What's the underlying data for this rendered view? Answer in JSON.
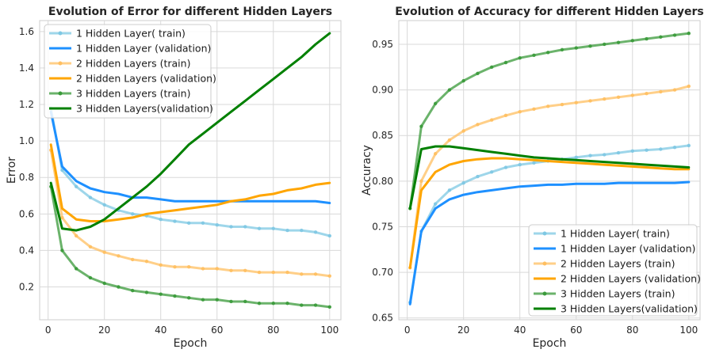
{
  "chart_data": [
    {
      "type": "line",
      "title": "Evolution of Error for different Hidden Layers",
      "xlabel": "Epoch",
      "ylabel": "Error",
      "xlim": [
        -3,
        104
      ],
      "ylim": [
        0.02,
        1.66
      ],
      "xticks": [
        0,
        20,
        40,
        60,
        80,
        100
      ],
      "yticks": [
        0.2,
        0.4,
        0.6,
        0.8,
        1.0,
        1.2,
        1.4,
        1.6
      ],
      "ytick_labels": [
        "0.2",
        "0.4",
        "0.6",
        "0.8",
        "1.0",
        "1.2",
        "1.4",
        "1.6"
      ],
      "grid": true,
      "legend_position": "upper-left",
      "x": [
        1,
        5,
        10,
        15,
        20,
        25,
        30,
        35,
        40,
        45,
        50,
        55,
        60,
        65,
        70,
        75,
        80,
        85,
        90,
        95,
        100
      ],
      "series": [
        {
          "name": "1 Hidden Layer( train)",
          "color": "#7ec8e3",
          "style": "train",
          "values": [
            1.18,
            0.84,
            0.75,
            0.69,
            0.65,
            0.62,
            0.6,
            0.59,
            0.57,
            0.56,
            0.55,
            0.55,
            0.54,
            0.53,
            0.53,
            0.52,
            0.52,
            0.51,
            0.51,
            0.5,
            0.48
          ]
        },
        {
          "name": "1 Hidden Layer (validation)",
          "color": "#1e90ff",
          "style": "validation",
          "values": [
            1.16,
            0.86,
            0.78,
            0.74,
            0.72,
            0.71,
            0.69,
            0.69,
            0.68,
            0.67,
            0.67,
            0.67,
            0.67,
            0.67,
            0.67,
            0.67,
            0.67,
            0.67,
            0.67,
            0.67,
            0.66
          ]
        },
        {
          "name": "2 Hidden Layers (train)",
          "color": "#ffbf60",
          "style": "train",
          "values": [
            0.95,
            0.58,
            0.48,
            0.42,
            0.39,
            0.37,
            0.35,
            0.34,
            0.32,
            0.31,
            0.31,
            0.3,
            0.3,
            0.29,
            0.29,
            0.28,
            0.28,
            0.28,
            0.27,
            0.27,
            0.26
          ]
        },
        {
          "name": "2 Hidden Layers (validation)",
          "color": "#ffa500",
          "style": "validation",
          "values": [
            0.98,
            0.63,
            0.57,
            0.56,
            0.56,
            0.57,
            0.58,
            0.6,
            0.61,
            0.62,
            0.63,
            0.64,
            0.65,
            0.67,
            0.68,
            0.7,
            0.71,
            0.73,
            0.74,
            0.76,
            0.77
          ]
        },
        {
          "name": "3 Hidden Layers (train)",
          "color": "#3a9a3a",
          "style": "train",
          "values": [
            0.75,
            0.4,
            0.3,
            0.25,
            0.22,
            0.2,
            0.18,
            0.17,
            0.16,
            0.15,
            0.14,
            0.13,
            0.13,
            0.12,
            0.12,
            0.11,
            0.11,
            0.11,
            0.1,
            0.1,
            0.09
          ]
        },
        {
          "name": "3 Hidden Layers(validation)",
          "color": "#008000",
          "style": "validation",
          "values": [
            0.77,
            0.52,
            0.51,
            0.53,
            0.57,
            0.63,
            0.69,
            0.75,
            0.82,
            0.9,
            0.98,
            1.04,
            1.1,
            1.16,
            1.22,
            1.28,
            1.34,
            1.4,
            1.46,
            1.53,
            1.59
          ]
        }
      ]
    },
    {
      "type": "line",
      "title": "Evolution of Accuracy for different Hidden Layers",
      "xlabel": "Epoch",
      "ylabel": "Accuracy",
      "xlim": [
        -3,
        104
      ],
      "ylim": [
        0.648,
        0.976
      ],
      "xticks": [
        0,
        20,
        40,
        60,
        80,
        100
      ],
      "yticks": [
        0.65,
        0.7,
        0.75,
        0.8,
        0.85,
        0.9,
        0.95
      ],
      "ytick_labels": [
        "0.65",
        "0.70",
        "0.75",
        "0.80",
        "0.85",
        "0.90",
        "0.95"
      ],
      "grid": true,
      "legend_position": "lower-right",
      "x": [
        1,
        5,
        10,
        15,
        20,
        25,
        30,
        35,
        40,
        45,
        50,
        55,
        60,
        65,
        70,
        75,
        80,
        85,
        90,
        95,
        100
      ],
      "series": [
        {
          "name": "1 Hidden Layer( train)",
          "color": "#7ec8e3",
          "style": "train",
          "values": [
            0.667,
            0.745,
            0.775,
            0.79,
            0.798,
            0.805,
            0.81,
            0.815,
            0.818,
            0.82,
            0.822,
            0.824,
            0.826,
            0.828,
            0.829,
            0.831,
            0.833,
            0.834,
            0.835,
            0.837,
            0.839
          ]
        },
        {
          "name": "1 Hidden Layer (validation)",
          "color": "#1e90ff",
          "style": "validation",
          "values": [
            0.665,
            0.745,
            0.77,
            0.78,
            0.785,
            0.788,
            0.79,
            0.792,
            0.794,
            0.795,
            0.796,
            0.796,
            0.797,
            0.797,
            0.797,
            0.798,
            0.798,
            0.798,
            0.798,
            0.798,
            0.799
          ]
        },
        {
          "name": "2 Hidden Layers (train)",
          "color": "#ffbf60",
          "style": "train",
          "values": [
            0.705,
            0.8,
            0.83,
            0.845,
            0.855,
            0.862,
            0.867,
            0.872,
            0.876,
            0.879,
            0.882,
            0.884,
            0.886,
            0.888,
            0.89,
            0.892,
            0.894,
            0.896,
            0.898,
            0.9,
            0.904
          ]
        },
        {
          "name": "2 Hidden Layers (validation)",
          "color": "#ffa500",
          "style": "validation",
          "values": [
            0.705,
            0.79,
            0.81,
            0.818,
            0.822,
            0.824,
            0.825,
            0.825,
            0.824,
            0.823,
            0.822,
            0.821,
            0.82,
            0.819,
            0.818,
            0.817,
            0.816,
            0.815,
            0.814,
            0.813,
            0.813
          ]
        },
        {
          "name": "3 Hidden Layers (train)",
          "color": "#3a9a3a",
          "style": "train",
          "values": [
            0.77,
            0.86,
            0.885,
            0.9,
            0.91,
            0.918,
            0.925,
            0.93,
            0.935,
            0.938,
            0.941,
            0.944,
            0.946,
            0.948,
            0.95,
            0.952,
            0.954,
            0.956,
            0.958,
            0.96,
            0.962
          ]
        },
        {
          "name": "3 Hidden Layers(validation)",
          "color": "#008000",
          "style": "validation",
          "values": [
            0.77,
            0.835,
            0.838,
            0.838,
            0.836,
            0.834,
            0.832,
            0.83,
            0.828,
            0.826,
            0.825,
            0.824,
            0.823,
            0.822,
            0.821,
            0.82,
            0.819,
            0.818,
            0.817,
            0.816,
            0.815
          ]
        }
      ]
    }
  ]
}
